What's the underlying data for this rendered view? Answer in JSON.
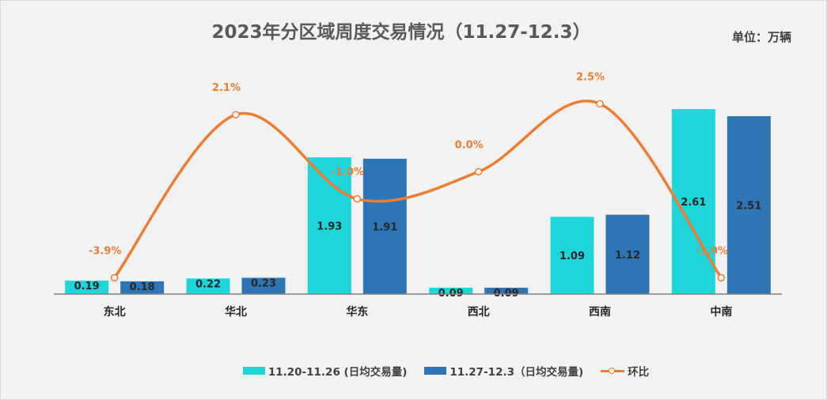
{
  "chart_data": {
    "type": "bar",
    "title": "2023年分区域周度交易情况（11.27-12.3）",
    "unit_label": "单位：万辆",
    "categories": [
      "东北",
      "华北",
      "华东",
      "西北",
      "西南",
      "中南"
    ],
    "series": [
      {
        "name": "11.20-11.26 (日均交易量)",
        "type": "bar",
        "color": "#1ed6d9",
        "values": [
          0.19,
          0.22,
          1.93,
          0.09,
          1.09,
          2.61
        ],
        "labels": [
          "0.19",
          "0.22",
          "1.93",
          "0.09",
          "1.09",
          "2.61"
        ]
      },
      {
        "name": "11.27-12.3（日均交易量)",
        "type": "bar",
        "color": "#2e75b6",
        "values": [
          0.18,
          0.23,
          1.91,
          0.09,
          1.12,
          2.51
        ],
        "labels": [
          "0.18",
          "0.23",
          "1.91",
          "0.09",
          "1.12",
          "2.51"
        ]
      },
      {
        "name": "环比",
        "type": "line",
        "color": "#ed7d31",
        "values": [
          -3.9,
          2.1,
          -1.0,
          0.0,
          2.5,
          -3.9
        ],
        "labels": [
          "-3.9%",
          "2.1%",
          "-1.0%",
          "0.0%",
          "2.5%",
          "-3.9%"
        ]
      }
    ],
    "bar_axis_range": [
      0,
      2.8
    ],
    "line_axis_range": [
      -4.5,
      2.8
    ],
    "grid": false,
    "legend_position": "bottom"
  }
}
